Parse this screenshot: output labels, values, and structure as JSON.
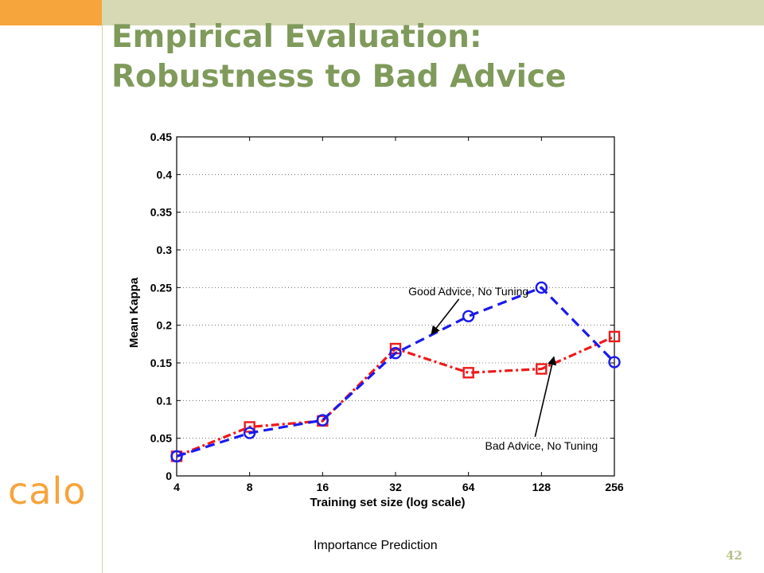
{
  "slide": {
    "title_line1": "Empirical Evaluation:",
    "title_line2": "Robustness to Bad Advice",
    "logo_text": "calo",
    "slide_number": "42",
    "caption": "Importance Prediction"
  },
  "colors": {
    "title": "#7f9a5a",
    "accent_orange": "#f6a43c",
    "band": "#d6d9b4",
    "series_good": "#1a1aee",
    "series_bad": "#ee1a1a"
  },
  "chart_data": {
    "type": "line",
    "xlabel": "Training set size (log scale)",
    "ylabel": "Mean Kappa",
    "x_scale": "log2",
    "x": [
      4,
      8,
      16,
      32,
      64,
      128,
      256
    ],
    "x_tick_labels": [
      "4",
      "8",
      "16",
      "32",
      "64",
      "128",
      "256"
    ],
    "ylim": [
      0,
      0.45
    ],
    "y_ticks": [
      0,
      0.05,
      0.1,
      0.15,
      0.2,
      0.25,
      0.3,
      0.35,
      0.4,
      0.45
    ],
    "y_tick_labels": [
      "0",
      "0.05",
      "0.1",
      "0.15",
      "0.2",
      "0.25",
      "0.3",
      "0.35",
      "0.4",
      "0.45"
    ],
    "grid": "horizontal dotted",
    "series": [
      {
        "values": [
          0.026,
          0.057,
          0.074,
          0.163,
          0.212,
          0.25,
          0.151
        ],
        "color": "#1a1aee",
        "marker": "circle",
        "line": "dashed"
      },
      {
        "values": [
          0.026,
          0.065,
          0.073,
          0.169,
          0.137,
          0.142,
          0.185
        ],
        "color": "#ee1a1a",
        "marker": "square",
        "line": "dash-dot"
      }
    ],
    "annotations": [
      {
        "text": "Good Advice, No Tuning",
        "x": 64,
        "y": 0.24,
        "arrow_to_x": 45,
        "arrow_to_y": 0.188
      },
      {
        "text": "Bad Advice, No Tuning",
        "x": 128,
        "y": 0.035,
        "arrow_to_x": 144,
        "arrow_to_y": 0.158
      }
    ]
  }
}
